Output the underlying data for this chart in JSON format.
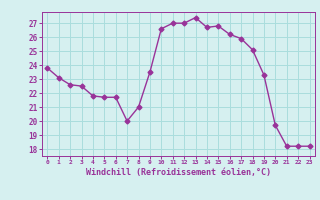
{
  "x": [
    0,
    1,
    2,
    3,
    4,
    5,
    6,
    7,
    8,
    9,
    10,
    11,
    12,
    13,
    14,
    15,
    16,
    17,
    18,
    19,
    20,
    21,
    22,
    23
  ],
  "y": [
    23.8,
    23.1,
    22.6,
    22.5,
    21.8,
    21.7,
    21.7,
    20.0,
    21.0,
    23.5,
    26.6,
    27.0,
    27.0,
    27.4,
    26.7,
    26.8,
    26.2,
    25.9,
    25.1,
    23.3,
    19.7,
    18.2,
    18.2,
    18.2
  ],
  "xlabel": "Windchill (Refroidissement éolien,°C)",
  "yticks": [
    18,
    19,
    20,
    21,
    22,
    23,
    24,
    25,
    26,
    27
  ],
  "xticks": [
    0,
    1,
    2,
    3,
    4,
    5,
    6,
    7,
    8,
    9,
    10,
    11,
    12,
    13,
    14,
    15,
    16,
    17,
    18,
    19,
    20,
    21,
    22,
    23
  ],
  "ylim": [
    17.5,
    27.8
  ],
  "xlim": [
    -0.5,
    23.5
  ],
  "line_color": "#993399",
  "bg_color": "#d6f0f0",
  "grid_color": "#aadddd",
  "tick_color": "#993399",
  "label_color": "#993399",
  "marker": "D",
  "marker_size": 2.5,
  "line_width": 1.0
}
